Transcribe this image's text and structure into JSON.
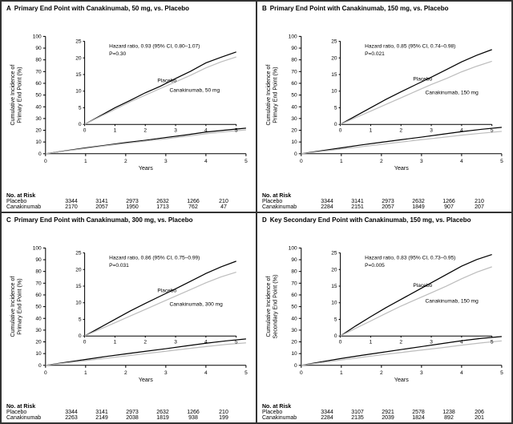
{
  "panels": [
    {
      "letter": "A",
      "title": "Primary End Point with Canakinumab, 50 mg, vs. Placebo",
      "y_label": "Cumulative Incidence of\nPrimary End Point (%)",
      "x_label": "Years",
      "hr_text": "Hazard ratio, 0.93 (95% CI, 0.80–1.07)",
      "p_text": "P=0.30",
      "placebo_label": "Placebo",
      "drug_label": "Canakinumab, 50 mg",
      "main_ylim": [
        0,
        100
      ],
      "main_ytick_step": 10,
      "main_xlim": [
        0,
        5
      ],
      "main_xtick_step": 1,
      "inset_ylim": [
        0,
        25
      ],
      "inset_ytick_step": 5,
      "inset_xlim": [
        0,
        5
      ],
      "inset_xtick_step": 1,
      "placebo_curve": [
        [
          0,
          0
        ],
        [
          0.5,
          2.5
        ],
        [
          1,
          5
        ],
        [
          1.5,
          7.2
        ],
        [
          2,
          9.5
        ],
        [
          2.5,
          11.5
        ],
        [
          3,
          13.8
        ],
        [
          3.5,
          16.0
        ],
        [
          4,
          18.5
        ],
        [
          4.5,
          20.2
        ],
        [
          5,
          21.8
        ]
      ],
      "drug_curve": [
        [
          0,
          0
        ],
        [
          0.5,
          2.3
        ],
        [
          1,
          4.5
        ],
        [
          1.5,
          6.8
        ],
        [
          2,
          8.8
        ],
        [
          2.5,
          10.8
        ],
        [
          3,
          12.8
        ],
        [
          3.5,
          14.8
        ],
        [
          4,
          17.0
        ],
        [
          4.5,
          18.8
        ],
        [
          5,
          20.3
        ]
      ],
      "risk_header": "No. at Risk",
      "risk": [
        {
          "label": "Placebo",
          "vals": [
            3344,
            3141,
            2973,
            2632,
            1266,
            210
          ]
        },
        {
          "label": "Canakinumab",
          "vals": [
            2170,
            2057,
            1950,
            1713,
            762,
            47
          ]
        }
      ]
    },
    {
      "letter": "B",
      "title": "Primary End Point with Canakinumab, 150 mg, vs. Placebo",
      "y_label": "Cumulative Incidence of\nPrimary End Point (%)",
      "x_label": "Years",
      "hr_text": "Hazard ratio, 0.85 (95% CI, 0.74–0.98)",
      "p_text": "P=0.021",
      "placebo_label": "Placebo",
      "drug_label": "Canakinumab, 150 mg",
      "main_ylim": [
        0,
        100
      ],
      "main_ytick_step": 10,
      "main_xlim": [
        0,
        5
      ],
      "main_xtick_step": 1,
      "inset_ylim": [
        0,
        25
      ],
      "inset_ytick_step": 5,
      "inset_xlim": [
        0,
        5
      ],
      "inset_xtick_step": 1,
      "placebo_curve": [
        [
          0,
          0
        ],
        [
          0.5,
          2.5
        ],
        [
          1,
          5
        ],
        [
          1.5,
          7.5
        ],
        [
          2,
          9.8
        ],
        [
          2.5,
          12.0
        ],
        [
          3,
          14.2
        ],
        [
          3.5,
          16.5
        ],
        [
          4,
          18.8
        ],
        [
          4.5,
          20.8
        ],
        [
          5,
          22.5
        ]
      ],
      "drug_curve": [
        [
          0,
          0
        ],
        [
          0.5,
          2.0
        ],
        [
          1,
          4.0
        ],
        [
          1.5,
          6.0
        ],
        [
          2,
          8.0
        ],
        [
          2.5,
          10.0
        ],
        [
          3,
          12.0
        ],
        [
          3.5,
          13.8
        ],
        [
          4,
          15.8
        ],
        [
          4.5,
          17.5
        ],
        [
          5,
          19.0
        ]
      ],
      "risk_header": "No. at Risk",
      "risk": [
        {
          "label": "Placebo",
          "vals": [
            3344,
            3141,
            2973,
            2632,
            1266,
            210
          ]
        },
        {
          "label": "Canakinumab",
          "vals": [
            2284,
            2151,
            2057,
            1849,
            907,
            207
          ]
        }
      ]
    },
    {
      "letter": "C",
      "title": "Primary End Point with Canakinumab, 300 mg, vs. Placebo",
      "y_label": "Cumulative Incidence of\nPrimary End Point (%)",
      "x_label": "Years",
      "hr_text": "Hazard ratio, 0.86 (95% CI, 0.75–0.99)",
      "p_text": "P=0.031",
      "placebo_label": "Placebo",
      "drug_label": "Canakinumab, 300 mg",
      "main_ylim": [
        0,
        100
      ],
      "main_ytick_step": 10,
      "main_xlim": [
        0,
        5
      ],
      "main_xtick_step": 1,
      "inset_ylim": [
        0,
        25
      ],
      "inset_ytick_step": 5,
      "inset_xlim": [
        0,
        5
      ],
      "inset_xtick_step": 1,
      "placebo_curve": [
        [
          0,
          0
        ],
        [
          0.5,
          2.5
        ],
        [
          1,
          5.0
        ],
        [
          1.5,
          7.5
        ],
        [
          2,
          9.8
        ],
        [
          2.5,
          12.0
        ],
        [
          3,
          14.2
        ],
        [
          3.5,
          16.5
        ],
        [
          4,
          18.8
        ],
        [
          4.5,
          20.8
        ],
        [
          5,
          22.5
        ]
      ],
      "drug_curve": [
        [
          0,
          0
        ],
        [
          0.5,
          2.0
        ],
        [
          1,
          4.0
        ],
        [
          1.5,
          6.0
        ],
        [
          2,
          8.0
        ],
        [
          2.5,
          10.0
        ],
        [
          3,
          12.0
        ],
        [
          3.5,
          14.0
        ],
        [
          4,
          16.0
        ],
        [
          4.5,
          17.8
        ],
        [
          5,
          19.2
        ]
      ],
      "risk_header": "No. at Risk",
      "risk": [
        {
          "label": "Placebo",
          "vals": [
            3344,
            3141,
            2973,
            2632,
            1266,
            210
          ]
        },
        {
          "label": "Canakinumab",
          "vals": [
            2263,
            2149,
            2038,
            1819,
            938,
            199
          ]
        }
      ]
    },
    {
      "letter": "D",
      "title": "Key Secondary End Point with Canakinumab, 150 mg, vs. Placebo",
      "y_label": "Cumulative Incidence of\nSecondary End Point (%)",
      "x_label": "Years",
      "hr_text": "Hazard ratio, 0.83 (95% CI, 0.73–0.95)",
      "p_text": "P=0.005",
      "placebo_label": "Placebo",
      "drug_label": "Canakinumab, 150 mg",
      "main_ylim": [
        0,
        100
      ],
      "main_ytick_step": 10,
      "main_xlim": [
        0,
        5
      ],
      "main_xtick_step": 1,
      "inset_ylim": [
        0,
        25
      ],
      "inset_ytick_step": 5,
      "inset_xlim": [
        0,
        5
      ],
      "inset_xtick_step": 1,
      "placebo_curve": [
        [
          0,
          0
        ],
        [
          0.5,
          3.0
        ],
        [
          1,
          5.8
        ],
        [
          1.5,
          8.5
        ],
        [
          2,
          11.0
        ],
        [
          2.5,
          13.5
        ],
        [
          3,
          16.0
        ],
        [
          3.5,
          18.5
        ],
        [
          4,
          21.0
        ],
        [
          4.5,
          23.0
        ],
        [
          5,
          24.5
        ]
      ],
      "drug_curve": [
        [
          0,
          0
        ],
        [
          0.5,
          2.3
        ],
        [
          1,
          4.5
        ],
        [
          1.5,
          6.8
        ],
        [
          2,
          9.0
        ],
        [
          2.5,
          11.0
        ],
        [
          3,
          13.0
        ],
        [
          3.5,
          15.0
        ],
        [
          4,
          17.2
        ],
        [
          4.5,
          19.2
        ],
        [
          5,
          20.8
        ]
      ],
      "risk_header": "No. at Risk",
      "risk": [
        {
          "label": "Placebo",
          "vals": [
            3344,
            3107,
            2921,
            2578,
            1238,
            206
          ]
        },
        {
          "label": "Canakinumab",
          "vals": [
            2284,
            2135,
            2039,
            1824,
            892,
            201
          ]
        }
      ]
    }
  ],
  "colors": {
    "placebo": "#000000",
    "drug": "#bdbdbd",
    "axis": "#000000",
    "bg": "#ffffff"
  }
}
